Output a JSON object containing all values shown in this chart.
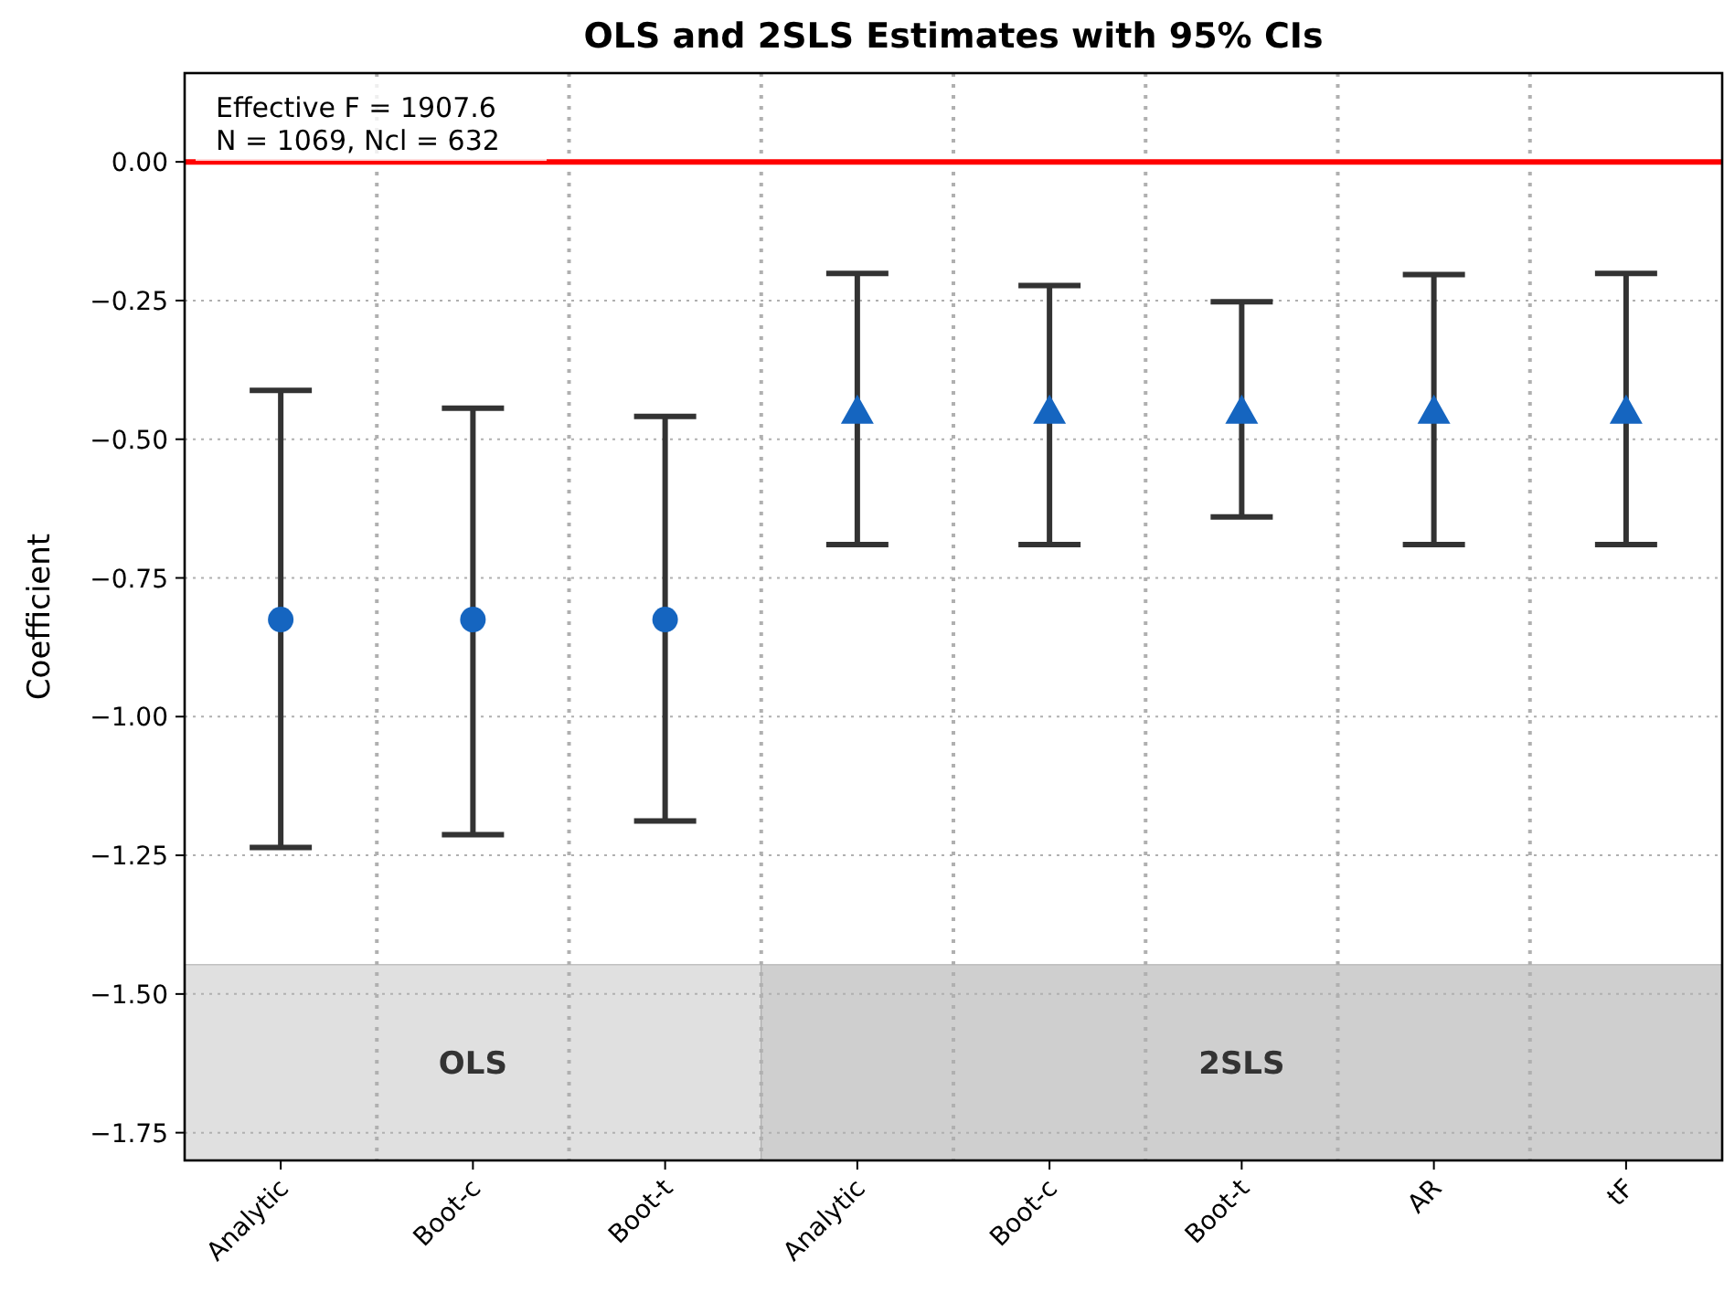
{
  "chart_data": {
    "type": "scatter",
    "title": "OLS and 2SLS Estimates with 95% CIs",
    "ylabel": "Coefficient",
    "categories": [
      "Analytic",
      "Boot-c",
      "Boot-t",
      "Analytic",
      "Boot-c",
      "Boot-t",
      "AR",
      "tF"
    ],
    "series": [
      {
        "color": "#1565c0",
        "marker": "circle",
        "values": [
          -0.825,
          -0.825,
          -0.825,
          null,
          null,
          null,
          null,
          null
        ],
        "errors": [
          [
            -1.236,
            -0.412
          ],
          [
            -1.213,
            -0.444
          ],
          [
            -1.188,
            -0.459
          ],
          null,
          null,
          null,
          null,
          null
        ]
      },
      {
        "color": "#1565c0",
        "marker": "triangle",
        "values": [
          null,
          null,
          null,
          -0.449,
          -0.449,
          -0.449,
          -0.449,
          -0.449
        ],
        "errors": [
          null,
          null,
          null,
          [
            -0.69,
            -0.201
          ],
          [
            -0.69,
            -0.223
          ],
          [
            -0.64,
            -0.252
          ],
          [
            -0.69,
            -0.203
          ],
          [
            -0.69,
            -0.201
          ]
        ]
      }
    ],
    "ylim": [
      -1.8,
      0.16
    ],
    "yticks": [
      {
        "value": 0,
        "label": "0.00"
      },
      {
        "value": -0.25,
        "label": "−0.25"
      },
      {
        "value": -0.5,
        "label": "−0.50"
      },
      {
        "value": -0.75,
        "label": "−0.75"
      },
      {
        "value": -1,
        "label": "−1.00"
      },
      {
        "value": -1.25,
        "label": "−1.25"
      },
      {
        "value": -1.5,
        "label": "−1.50"
      },
      {
        "value": -1.75,
        "label": "−1.75"
      }
    ],
    "grid": true,
    "ref_lines": [
      {
        "axis": "y",
        "value": 0,
        "color": "#ff0000"
      }
    ],
    "annotations": [
      "Effective F = 1907.6",
      "N = 1069, Ncl = 632",
      "OLS",
      "2SLS"
    ]
  }
}
